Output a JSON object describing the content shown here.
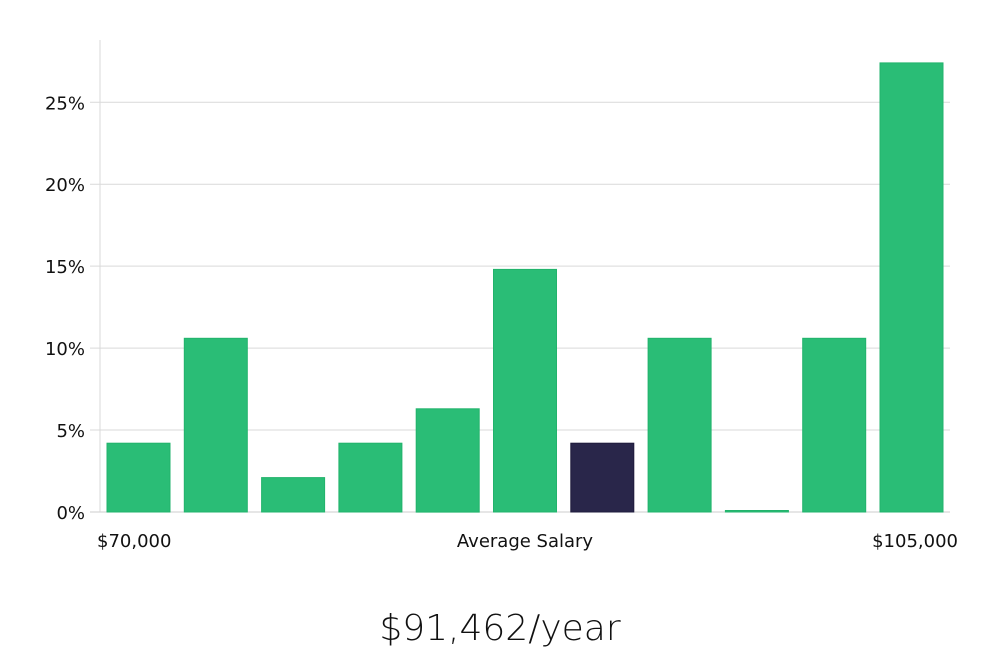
{
  "chart_data": {
    "type": "bar",
    "categories": [
      "1",
      "2",
      "3",
      "4",
      "5",
      "6",
      "7",
      "8",
      "9",
      "10",
      "11"
    ],
    "values": [
      4.2,
      10.6,
      2.1,
      4.2,
      6.3,
      14.8,
      4.2,
      10.6,
      0,
      10.6,
      27.4
    ],
    "highlight_index": 6,
    "ylim": [
      0,
      28.8
    ],
    "yticks": [
      0,
      5,
      10,
      15,
      20,
      25
    ],
    "ytick_labels": [
      "0%",
      "5%",
      "10%",
      "15%",
      "20%",
      "25%"
    ],
    "x_left_label": "$70,000",
    "xlabel": "Average Salary",
    "x_right_label": "$105,000",
    "grid": true,
    "colors": {
      "bar": "#2abd76",
      "highlight": "#29264a",
      "grid": "#d9d9d9",
      "axis": "#cccccc"
    }
  },
  "summary": "$91,462/year"
}
